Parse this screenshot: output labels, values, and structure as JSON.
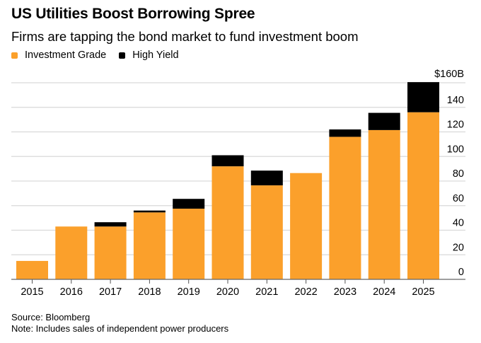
{
  "chart_data": {
    "type": "bar",
    "stacked": true,
    "title": "US Utilities Boost Borrowing Spree",
    "subtitle": "Firms are tapping the bond market to fund investment boom",
    "xlabel": "",
    "ylabel": "",
    "y_unit_label": "$160B",
    "ylim": [
      0,
      160
    ],
    "yticks": [
      0,
      20,
      40,
      60,
      80,
      100,
      120,
      140,
      160
    ],
    "ytick_labels": [
      "0",
      "20",
      "40",
      "60",
      "80",
      "100",
      "120",
      "140",
      "$160B"
    ],
    "y_axis_position": "right",
    "grid": true,
    "legend_position": "top-left",
    "categories": [
      "2015",
      "2016",
      "2017",
      "2018",
      "2019",
      "2020",
      "2021",
      "2022",
      "2023",
      "2024",
      "2025"
    ],
    "series": [
      {
        "name": "Investment Grade",
        "color": "#FBA02B",
        "values": [
          15,
          43,
          43,
          54.5,
          57.5,
          92,
          76.5,
          86.5,
          116,
          121.5,
          136
        ]
      },
      {
        "name": "High Yield",
        "color": "#000000",
        "values": [
          0,
          0,
          3.5,
          1.5,
          8,
          9,
          12,
          0,
          6,
          14,
          24.5
        ]
      }
    ]
  },
  "source": "Source: Bloomberg",
  "note": "Note: Includes sales of independent power producers"
}
